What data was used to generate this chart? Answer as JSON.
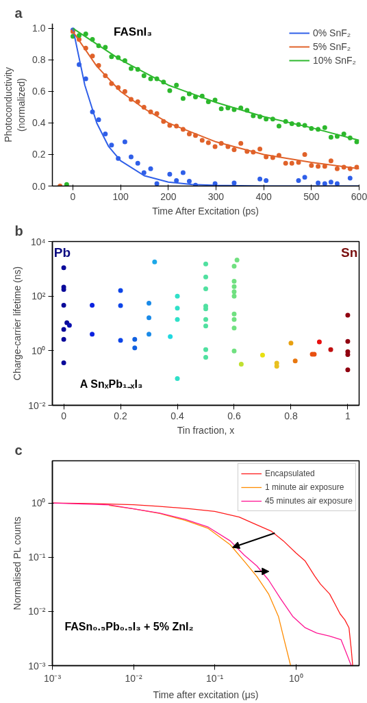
{
  "chart_data": [
    {
      "type": "scatter",
      "title": "a",
      "xlabel": "Time After Excitation (ps)",
      "ylabel": "Photoconductivity\n(normalized)",
      "xlim": [
        -43,
        600
      ],
      "ylim": [
        0,
        1.03
      ],
      "xticks": [
        0,
        100,
        200,
        300,
        400,
        500,
        600
      ],
      "yticks": [
        {
          "value": 0,
          "label": "0.0"
        },
        0.2,
        0.4,
        0.6,
        0.8,
        {
          "value": 1,
          "label": "1.0"
        }
      ],
      "grid": false,
      "legend": "top right",
      "annotations": [
        "FASnI₃"
      ],
      "series": [
        {
          "color": "#2f5fe8",
          "marker": "circle",
          "x": [
            0,
            13,
            27,
            41,
            54,
            68,
            81,
            95,
            109,
            122,
            136,
            149,
            163,
            176,
            203,
            217,
            231,
            244,
            257,
            298,
            338,
            392,
            405,
            473,
            486,
            514,
            528,
            541,
            554,
            581
          ],
          "values": [
            0.99,
            0.77,
            0.68,
            0.47,
            0.42,
            0.33,
            0.26,
            0.175,
            0.28,
            0.185,
            0.145,
            0.085,
            0.11,
            0.015,
            0.075,
            0.035,
            0.085,
            0.03,
            0.005,
            0.015,
            0.02,
            0.045,
            0.035,
            0.035,
            0.055,
            0.02,
            0.015,
            0.025,
            0.015,
            0.05
          ]
        },
        {
          "color": "#e0622a",
          "marker": "circle",
          "x": [
            -27,
            0,
            13,
            27,
            41,
            54,
            68,
            81,
            95,
            109,
            122,
            136,
            149,
            163,
            176,
            190,
            203,
            217,
            231,
            244,
            257,
            271,
            284,
            298,
            311,
            325,
            338,
            352,
            365,
            378,
            392,
            405,
            419,
            432,
            446,
            459,
            473,
            486,
            500,
            514,
            528,
            541,
            554,
            568,
            581,
            595
          ],
          "values": [
            0,
            0.98,
            0.93,
            0.875,
            0.825,
            0.765,
            0.7,
            0.65,
            0.625,
            0.6,
            0.55,
            0.535,
            0.5,
            0.47,
            0.46,
            0.41,
            0.385,
            0.38,
            0.36,
            0.33,
            0.32,
            0.29,
            0.275,
            0.25,
            0.27,
            0.25,
            0.23,
            0.27,
            0.22,
            0.215,
            0.235,
            0.185,
            0.18,
            0.195,
            0.145,
            0.145,
            0.15,
            0.2,
            0.13,
            0.125,
            0.125,
            0.16,
            0.11,
            0.12,
            0.11,
            0.12
          ]
        },
        {
          "color": "#2db82d",
          "marker": "circle",
          "x": [
            -13,
            0,
            13,
            27,
            41,
            54,
            68,
            81,
            95,
            109,
            122,
            136,
            149,
            163,
            176,
            190,
            203,
            217,
            231,
            244,
            257,
            271,
            284,
            298,
            311,
            325,
            338,
            352,
            365,
            378,
            392,
            405,
            419,
            432,
            446,
            459,
            473,
            486,
            500,
            514,
            528,
            541,
            554,
            568,
            581,
            595
          ],
          "values": [
            0.01,
            0.95,
            0.955,
            0.965,
            0.93,
            0.89,
            0.88,
            0.82,
            0.815,
            0.795,
            0.745,
            0.74,
            0.7,
            0.68,
            0.68,
            0.66,
            0.605,
            0.64,
            0.555,
            0.585,
            0.565,
            0.57,
            0.535,
            0.545,
            0.49,
            0.495,
            0.485,
            0.495,
            0.48,
            0.445,
            0.44,
            0.425,
            0.425,
            0.38,
            0.41,
            0.395,
            0.39,
            0.385,
            0.365,
            0.36,
            0.37,
            0.31,
            0.315,
            0.33,
            0.305,
            0.28
          ]
        },
        {
          "type": "line",
          "name": "0% SnF₂",
          "color": "#2f5fe8",
          "x": [
            0,
            25,
            50,
            75,
            100,
            150,
            200,
            250,
            300,
            400,
            500,
            600
          ],
          "values": [
            1.0,
            0.64,
            0.4,
            0.25,
            0.16,
            0.065,
            0.025,
            0.01,
            0.004,
            0,
            0,
            0
          ]
        },
        {
          "type": "line",
          "name": "5% SnF₂",
          "color": "#e0622a",
          "x": [
            0,
            50,
            100,
            150,
            200,
            300,
            400,
            500,
            600
          ],
          "values": [
            0.98,
            0.76,
            0.6,
            0.49,
            0.4,
            0.28,
            0.2,
            0.15,
            0.11
          ]
        },
        {
          "type": "line",
          "name": "10% SnF₂",
          "color": "#2db82d",
          "x": [
            0,
            100,
            200,
            300,
            400,
            500,
            600
          ],
          "values": [
            1.0,
            0.8,
            0.64,
            0.53,
            0.44,
            0.37,
            0.29
          ]
        }
      ]
    },
    {
      "type": "scatter",
      "title": "b",
      "xlabel": "Tin fraction, x",
      "ylabel": "Charge-carrier lifetime (ns)",
      "log": "y",
      "xlim": [
        -0.04,
        1.04
      ],
      "ylim": [
        0.01,
        10000
      ],
      "xticks": [
        0,
        0.2,
        0.4,
        0.6,
        0.8,
        1
      ],
      "yticks": [
        {
          "value": 0.01,
          "label": "10⁻²"
        },
        {
          "value": 1,
          "label": "10⁰"
        },
        {
          "value": 100,
          "label": "10²"
        },
        {
          "value": 10000,
          "label": "10⁴"
        }
      ],
      "grid": false,
      "marker": "circle",
      "annotations": [
        "Pb",
        "Sn",
        "A SnₓPb₁₋ₓI₃"
      ],
      "series": [
        {
          "x": [
            0,
            0,
            0,
            0,
            0,
            0,
            0,
            0.011,
            0.02,
            0.1,
            0.1,
            0.2,
            0.2,
            0.2,
            0.25,
            0.25,
            0.3,
            0.3,
            0.3,
            0.32,
            0.375,
            0.4,
            0.4,
            0.4,
            0.4,
            0.5,
            0.5,
            0.5,
            0.5,
            0.5,
            0.5,
            0.5,
            0.5,
            0.5,
            0.6,
            0.6,
            0.6,
            0.6,
            0.6,
            0.6,
            0.6,
            0.6,
            0.6,
            0.61,
            0.625,
            0.7,
            0.75,
            0.75,
            0.8,
            0.815,
            0.875,
            0.882,
            0.9,
            0.94,
            1,
            1,
            1,
            1,
            1
          ],
          "values": [
            1100,
            215,
            175,
            46,
            6,
            2.6,
            0.36,
            10.6,
            8.5,
            46,
            4,
            160,
            45,
            2.4,
            2.6,
            1.27,
            55,
            16,
            4,
            1780,
            3.3,
            100,
            36,
            14,
            0.095,
            1500,
            500,
            185,
            43,
            34,
            14,
            8,
            1.1,
            0.57,
            1250,
            350,
            225,
            145,
            100,
            22,
            14,
            6.8,
            0.98,
            2100,
            0.32,
            0.69,
            0.35,
            0.27,
            1.9,
            0.42,
            0.74,
            0.74,
            2.1,
            1.1,
            20,
            2.2,
            0.92,
            0.72,
            0.2
          ],
          "colors": [
            "#0a0a9a",
            "#0a0a9a",
            "#0a0a9a",
            "#0a0a9a",
            "#0a0a9a",
            "#0a0a9a",
            "#0a0a9a",
            "#0a0a9a",
            "#0a10b0",
            "#0b22e0",
            "#0b22e0",
            "#0d45e8",
            "#0d45e8",
            "#0d45e8",
            "#1060e0",
            "#1060e0",
            "#1a8ae8",
            "#1a8ae8",
            "#1a8ae8",
            "#1da8e8",
            "#20d8e0",
            "#30e0c8",
            "#30e0c8",
            "#30e0c8",
            "#30e0c8",
            "#50e0a0",
            "#50e0a0",
            "#50e0a0",
            "#50e0a0",
            "#50e0a0",
            "#50e0a0",
            "#50e0a0",
            "#50e0a0",
            "#50e0a0",
            "#70e080",
            "#70e080",
            "#70e080",
            "#70e080",
            "#70e080",
            "#70e080",
            "#70e080",
            "#70e080",
            "#70e080",
            "#70e080",
            "#c0e030",
            "#e8e010",
            "#e8c020",
            "#e8c020",
            "#e8a010",
            "#e87810",
            "#e85010",
            "#e85010",
            "#e81010",
            "#c01010",
            "#900010",
            "#900010",
            "#900010",
            "#900010",
            "#900010"
          ]
        }
      ]
    },
    {
      "type": "line",
      "title": "c",
      "xlabel": "Time after excitation (μs)",
      "ylabel": "Normalised PL counts",
      "log": "xy",
      "xlim": [
        0.001,
        6
      ],
      "ylim": [
        0.001,
        6
      ],
      "xticks": [
        {
          "value": 0.001,
          "label": "10⁻³"
        },
        {
          "value": 0.01,
          "label": "10⁻²"
        },
        {
          "value": 0.1,
          "label": "10⁻¹"
        },
        {
          "value": 1,
          "label": "10⁰"
        }
      ],
      "yticks": [
        {
          "value": 0.001,
          "label": "10⁻³"
        },
        {
          "value": 0.01,
          "label": "10⁻²"
        },
        {
          "value": 0.1,
          "label": "10⁻¹"
        },
        {
          "value": 1,
          "label": "10⁰"
        }
      ],
      "grid": false,
      "legend": "top right",
      "annotations": [
        "FASn₀.₅Pb₀.₅I₃ + 5% ZnI₂"
      ],
      "series": [
        {
          "name": "Encapsulated",
          "color": "#ff1a1a",
          "x": [
            0.001,
            0.003,
            0.01,
            0.02,
            0.05,
            0.1,
            0.2,
            0.3,
            0.5,
            0.7,
            1.0,
            1.3,
            1.7,
            2.0,
            2.6,
            3.0,
            3.5,
            4.0,
            4.5,
            4.8,
            5.0
          ],
          "values": [
            1.0,
            0.98,
            0.93,
            0.87,
            0.78,
            0.7,
            0.55,
            0.42,
            0.3,
            0.2,
            0.12,
            0.085,
            0.045,
            0.032,
            0.021,
            0.014,
            0.009,
            0.007,
            0.005,
            0.002,
            0.001
          ]
        },
        {
          "name": "1 minute air exposure",
          "color": "#ff8c00",
          "x": [
            0.005,
            0.01,
            0.021,
            0.043,
            0.083,
            0.155,
            0.23,
            0.33,
            0.46,
            0.61,
            0.72,
            0.86
          ],
          "values": [
            0.9,
            0.78,
            0.64,
            0.48,
            0.34,
            0.17,
            0.085,
            0.044,
            0.021,
            0.008,
            0.0029,
            0.001
          ]
        },
        {
          "name": "45 minutes air exposure",
          "color": "#ff1493",
          "x": [
            0.001,
            0.005,
            0.01,
            0.021,
            0.043,
            0.083,
            0.155,
            0.23,
            0.33,
            0.46,
            0.65,
            0.92,
            1.3,
            1.8,
            2.6,
            3.6,
            4.8
          ],
          "values": [
            1.0,
            0.92,
            0.78,
            0.65,
            0.5,
            0.36,
            0.2,
            0.11,
            0.069,
            0.038,
            0.017,
            0.008,
            0.005,
            0.004,
            0.0035,
            0.003,
            0.001
          ]
        }
      ]
    }
  ]
}
